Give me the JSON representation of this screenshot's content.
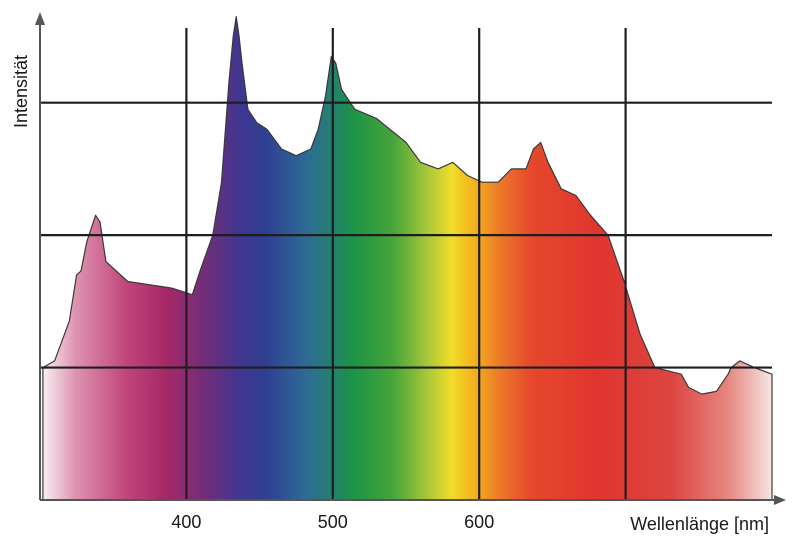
{
  "chart_data": {
    "type": "area",
    "title": "",
    "xlabel": "Wellenlänge [nm]",
    "ylabel": "Intensität",
    "x_ticks": [
      400,
      500,
      600
    ],
    "x_tick_labels": [
      "400",
      "500",
      "600"
    ],
    "xlim": [
      300,
      800
    ],
    "ylim": [
      0,
      3.7
    ],
    "grid": true,
    "y_ticks_unlabeled": [
      1,
      2,
      3
    ],
    "fill": "visible-spectrum-gradient",
    "series": [
      {
        "x": [
          302,
          310,
          320,
          325,
          328,
          332,
          338,
          341,
          345,
          360,
          390,
          404,
          410,
          418,
          424,
          429,
          432,
          434,
          436,
          438,
          442,
          448,
          455,
          465,
          475,
          485,
          490,
          495,
          499,
          502,
          506,
          515,
          530,
          550,
          560,
          572,
          582,
          592,
          602,
          613,
          622,
          632,
          637,
          642,
          647,
          656,
          666,
          676,
          688,
          699,
          710,
          720,
          738,
          743,
          752,
          762,
          770,
          772,
          778,
          788,
          802
        ],
        "y": [
          1.0,
          1.05,
          1.35,
          1.7,
          1.73,
          1.95,
          2.15,
          2.1,
          1.8,
          1.65,
          1.6,
          1.55,
          1.75,
          2.0,
          2.4,
          3.15,
          3.5,
          3.65,
          3.5,
          3.3,
          2.95,
          2.85,
          2.8,
          2.65,
          2.6,
          2.65,
          2.8,
          3.05,
          3.35,
          3.3,
          3.1,
          2.95,
          2.88,
          2.7,
          2.55,
          2.5,
          2.55,
          2.45,
          2.4,
          2.4,
          2.5,
          2.5,
          2.65,
          2.7,
          2.55,
          2.35,
          2.3,
          2.15,
          2.0,
          1.65,
          1.25,
          1.0,
          0.95,
          0.85,
          0.8,
          0.82,
          0.95,
          1.0,
          1.05,
          1.0,
          0.95
        ]
      }
    ]
  }
}
